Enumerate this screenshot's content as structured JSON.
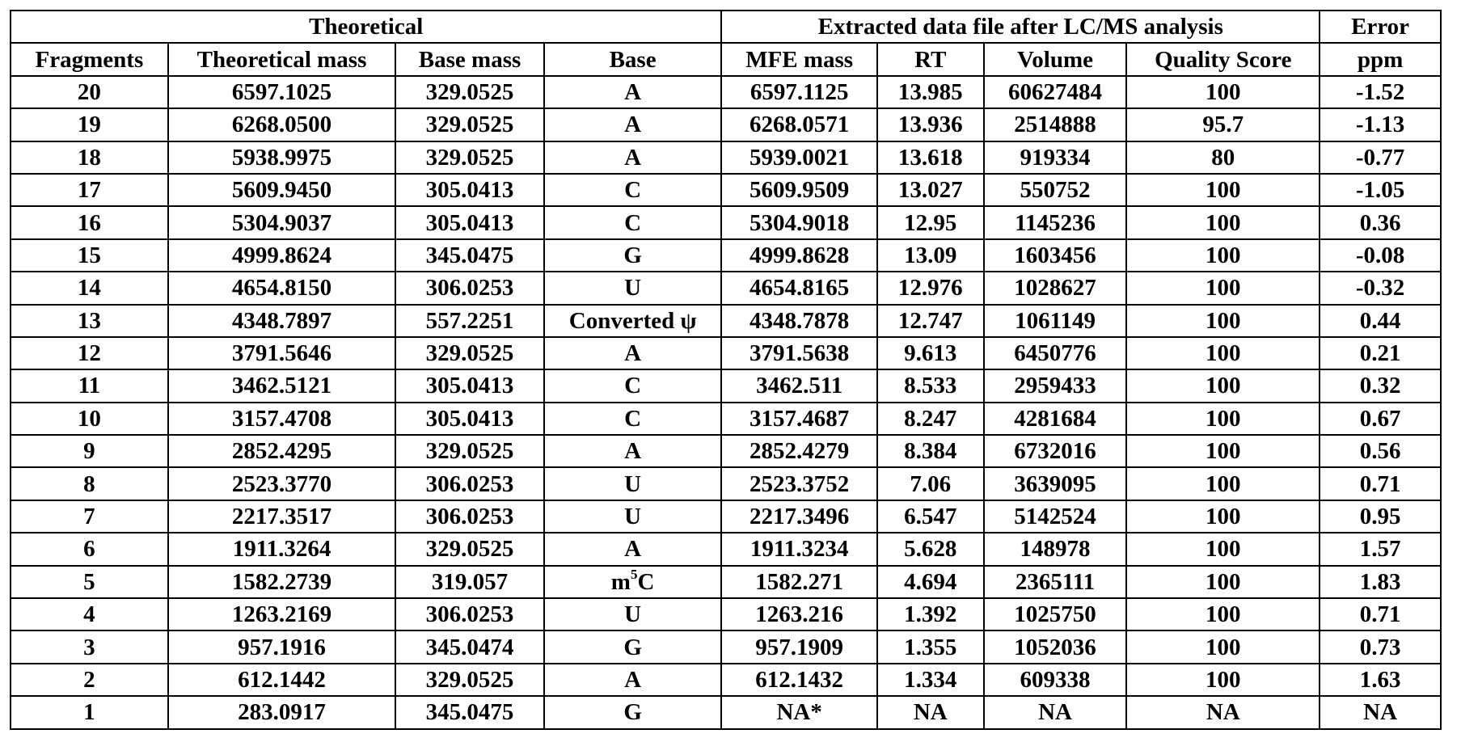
{
  "table": {
    "group_headers": [
      {
        "label": "Theoretical",
        "span": 4
      },
      {
        "label": "Extracted data file after LC/MS analysis",
        "span": 4
      },
      {
        "label": "Error",
        "span": 1
      }
    ],
    "columns": [
      "Fragments",
      "Theoretical mass",
      "Base mass",
      "Base",
      "MFE mass",
      "RT",
      "Volume",
      "Quality Score",
      "ppm"
    ],
    "rows": [
      {
        "fragment": "20",
        "theoretical_mass": "6597.1025",
        "base_mass": "329.0525",
        "base": "A",
        "mfe_mass": "6597.1125",
        "rt": "13.985",
        "volume": "60627484",
        "quality_score": "100",
        "ppm": "-1.52"
      },
      {
        "fragment": "19",
        "theoretical_mass": "6268.0500",
        "base_mass": "329.0525",
        "base": "A",
        "mfe_mass": "6268.0571",
        "rt": "13.936",
        "volume": "2514888",
        "quality_score": "95.7",
        "ppm": "-1.13"
      },
      {
        "fragment": "18",
        "theoretical_mass": "5938.9975",
        "base_mass": "329.0525",
        "base": "A",
        "mfe_mass": "5939.0021",
        "rt": "13.618",
        "volume": "919334",
        "quality_score": "80",
        "ppm": "-0.77"
      },
      {
        "fragment": "17",
        "theoretical_mass": "5609.9450",
        "base_mass": "305.0413",
        "base": "C",
        "mfe_mass": "5609.9509",
        "rt": "13.027",
        "volume": "550752",
        "quality_score": "100",
        "ppm": "-1.05"
      },
      {
        "fragment": "16",
        "theoretical_mass": "5304.9037",
        "base_mass": "305.0413",
        "base": "C",
        "mfe_mass": "5304.9018",
        "rt": "12.95",
        "volume": "1145236",
        "quality_score": "100",
        "ppm": "0.36"
      },
      {
        "fragment": "15",
        "theoretical_mass": "4999.8624",
        "base_mass": "345.0475",
        "base": "G",
        "mfe_mass": "4999.8628",
        "rt": "13.09",
        "volume": "1603456",
        "quality_score": "100",
        "ppm": "-0.08"
      },
      {
        "fragment": "14",
        "theoretical_mass": "4654.8150",
        "base_mass": "306.0253",
        "base": "U",
        "mfe_mass": "4654.8165",
        "rt": "12.976",
        "volume": "1028627",
        "quality_score": "100",
        "ppm": "-0.32"
      },
      {
        "fragment": "13",
        "theoretical_mass": "4348.7897",
        "base_mass": "557.2251",
        "base": "Converted ψ",
        "mfe_mass": "4348.7878",
        "rt": "12.747",
        "volume": "1061149",
        "quality_score": "100",
        "ppm": "0.44"
      },
      {
        "fragment": "12",
        "theoretical_mass": "3791.5646",
        "base_mass": "329.0525",
        "base": "A",
        "mfe_mass": "3791.5638",
        "rt": "9.613",
        "volume": "6450776",
        "quality_score": "100",
        "ppm": "0.21"
      },
      {
        "fragment": "11",
        "theoretical_mass": "3462.5121",
        "base_mass": "305.0413",
        "base": "C",
        "mfe_mass": "3462.511",
        "rt": "8.533",
        "volume": "2959433",
        "quality_score": "100",
        "ppm": "0.32"
      },
      {
        "fragment": "10",
        "theoretical_mass": "3157.4708",
        "base_mass": "305.0413",
        "base": "C",
        "mfe_mass": "3157.4687",
        "rt": "8.247",
        "volume": "4281684",
        "quality_score": "100",
        "ppm": "0.67"
      },
      {
        "fragment": "9",
        "theoretical_mass": "2852.4295",
        "base_mass": "329.0525",
        "base": "A",
        "mfe_mass": "2852.4279",
        "rt": "8.384",
        "volume": "6732016",
        "quality_score": "100",
        "ppm": "0.56"
      },
      {
        "fragment": "8",
        "theoretical_mass": "2523.3770",
        "base_mass": "306.0253",
        "base": "U",
        "mfe_mass": "2523.3752",
        "rt": "7.06",
        "volume": "3639095",
        "quality_score": "100",
        "ppm": "0.71"
      },
      {
        "fragment": "7",
        "theoretical_mass": "2217.3517",
        "base_mass": "306.0253",
        "base": "U",
        "mfe_mass": "2217.3496",
        "rt": "6.547",
        "volume": "5142524",
        "quality_score": "100",
        "ppm": "0.95"
      },
      {
        "fragment": "6",
        "theoretical_mass": "1911.3264",
        "base_mass": "329.0525",
        "base": "A",
        "mfe_mass": "1911.3234",
        "rt": "5.628",
        "volume": "148978",
        "quality_score": "100",
        "ppm": "1.57"
      },
      {
        "fragment": "5",
        "theoretical_mass": "1582.2739",
        "base_mass": "319.057",
        "base": "m",
        "base_sup": "5",
        "base_suffix": "C",
        "mfe_mass": "1582.271",
        "rt": "4.694",
        "volume": "2365111",
        "quality_score": "100",
        "ppm": "1.83"
      },
      {
        "fragment": "4",
        "theoretical_mass": "1263.2169",
        "base_mass": "306.0253",
        "base": "U",
        "mfe_mass": "1263.216",
        "rt": "1.392",
        "volume": "1025750",
        "quality_score": "100",
        "ppm": "0.71"
      },
      {
        "fragment": "3",
        "theoretical_mass": "957.1916",
        "base_mass": "345.0474",
        "base": "G",
        "mfe_mass": "957.1909",
        "rt": "1.355",
        "volume": "1052036",
        "quality_score": "100",
        "ppm": "0.73"
      },
      {
        "fragment": "2",
        "theoretical_mass": "612.1442",
        "base_mass": "329.0525",
        "base": "A",
        "mfe_mass": "612.1432",
        "rt": "1.334",
        "volume": "609338",
        "quality_score": "100",
        "ppm": "1.63"
      },
      {
        "fragment": "1",
        "theoretical_mass": "283.0917",
        "base_mass": "345.0475",
        "base": "G",
        "mfe_mass": "NA*",
        "rt": "NA",
        "volume": "NA",
        "quality_score": "NA",
        "ppm": "NA"
      }
    ]
  }
}
